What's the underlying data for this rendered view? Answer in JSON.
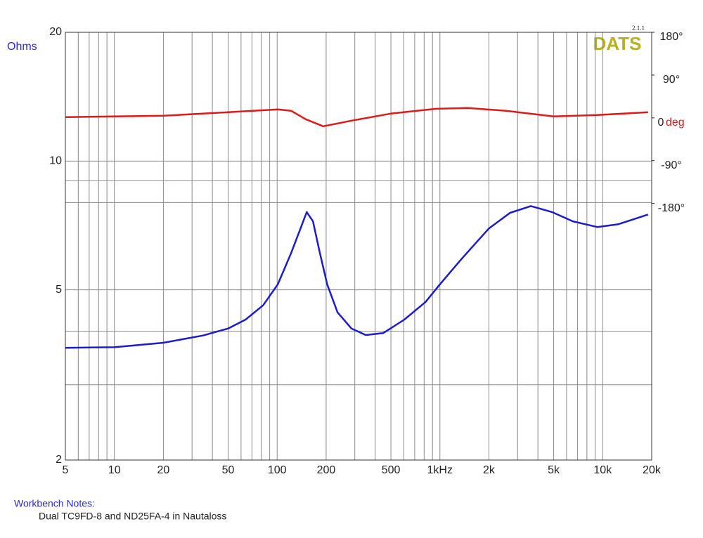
{
  "chart_data": {
    "type": "line",
    "logo": "DATS",
    "version": "2.1.1",
    "y_label": "Ohms",
    "y2_label": "deg",
    "xscale": "log",
    "yscale": "log",
    "xlim": [
      5,
      20000
    ],
    "ylim": [
      2,
      20
    ],
    "y2lim": [
      -720,
      180
    ],
    "xticks": [
      5,
      10,
      20,
      50,
      100,
      200,
      500,
      {
        "value": 1000,
        "label": "1kHz"
      },
      {
        "value": 2000,
        "label": "2k"
      },
      {
        "value": 5000,
        "label": "5k"
      },
      {
        "value": 10000,
        "label": "10k"
      },
      {
        "value": 20000,
        "label": "20k"
      }
    ],
    "xminor": [
      6,
      7,
      8,
      9,
      30,
      40,
      60,
      70,
      80,
      90,
      300,
      400,
      600,
      700,
      800,
      900,
      3000,
      4000,
      6000,
      7000,
      8000,
      9000
    ],
    "yticks": [
      2,
      5,
      10,
      20
    ],
    "yminor": [
      3,
      4,
      8,
      9
    ],
    "y2ticks": [
      {
        "value": 180,
        "label": "180°"
      },
      {
        "value": 90,
        "label": "90°"
      },
      0,
      {
        "value": -90,
        "label": "-90°"
      },
      {
        "value": -180,
        "label": "-180°"
      }
    ],
    "grid": true,
    "series": [
      {
        "color": "#1c1ccf",
        "axis": "y",
        "x": [
          5,
          10,
          20,
          35,
          50,
          64,
          82,
          101,
          122,
          142,
          152,
          166,
          183,
          203,
          235,
          286,
          350,
          448,
          605,
          815,
          1000,
          1340,
          2000,
          2700,
          3620,
          4880,
          6550,
          9300,
          12500,
          19000
        ],
        "values": [
          3.66,
          3.67,
          3.76,
          3.91,
          4.06,
          4.26,
          4.6,
          5.15,
          6.1,
          7.1,
          7.6,
          7.23,
          6.1,
          5.15,
          4.43,
          4.06,
          3.92,
          3.96,
          4.26,
          4.68,
          5.15,
          5.87,
          6.96,
          7.57,
          7.85,
          7.6,
          7.23,
          7.01,
          7.12,
          7.5
        ]
      },
      {
        "color": "#e01818",
        "axis": "y2",
        "x": [
          5,
          20,
          50,
          101,
          122,
          150,
          192,
          286,
          497,
          945,
          1480,
          2550,
          5000,
          9270,
          19000
        ],
        "values": [
          1.5,
          4.4,
          11.8,
          17.7,
          14.8,
          -3,
          -17.7,
          -5.9,
          8.9,
          19,
          20.7,
          14.8,
          3,
          5.9,
          11.8
        ]
      }
    ]
  },
  "notes": {
    "heading": "Workbench Notes:",
    "text": "Dual TC9FD-8 and ND25FA-4 in Nautaloss"
  }
}
